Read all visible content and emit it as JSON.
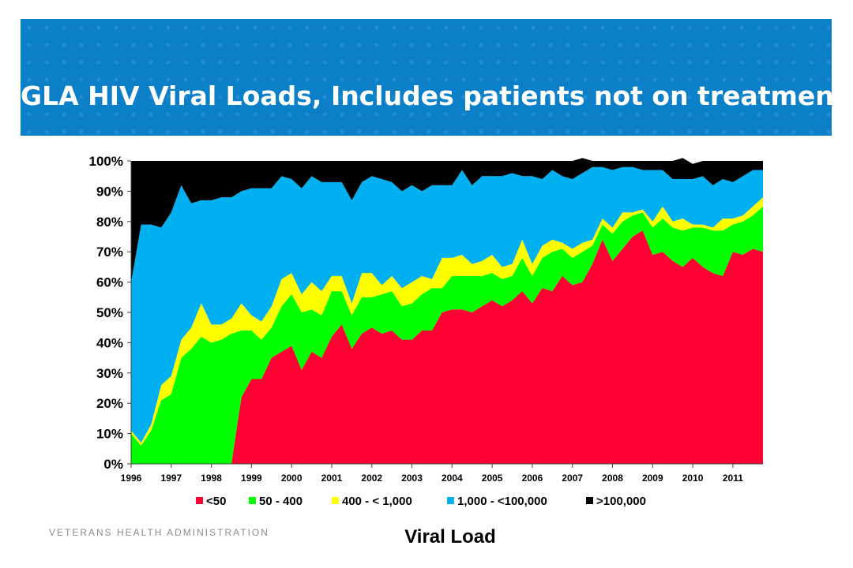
{
  "slide": {
    "title": "GLA HIV Viral Loads, Includes patients not on treatment",
    "org": "VETERANS HEALTH ADMINISTRATION"
  },
  "colors": {
    "banner": "#0b7fc8",
    "lt50": "#ff0033",
    "r50_400": "#00ff00",
    "r400_1000": "#ffff00",
    "r1000_100000": "#00b0f0",
    "gt100000": "#000000"
  },
  "chart_data": {
    "type": "area",
    "stacked": true,
    "xlabel": "Viral Load",
    "ylabel": "",
    "ylim": [
      0,
      100
    ],
    "y_ticks": [
      "0%",
      "10%",
      "20%",
      "30%",
      "40%",
      "50%",
      "60%",
      "70%",
      "80%",
      "90%",
      "100%"
    ],
    "x_ticks": [
      "1996",
      "1997",
      "1998",
      "1999",
      "2000",
      "2001",
      "2002",
      "2003",
      "2004",
      "2005",
      "2006",
      "2007",
      "2008",
      "2009",
      "2010",
      "2011"
    ],
    "x_range": [
      1996.0,
      2011.75
    ],
    "x": [
      1996.0,
      1996.25,
      1996.5,
      1996.75,
      1997.0,
      1997.25,
      1997.5,
      1997.75,
      1998.0,
      1998.25,
      1998.5,
      1998.75,
      1999.0,
      1999.25,
      1999.5,
      1999.75,
      2000.0,
      2000.25,
      2000.5,
      2000.75,
      2001.0,
      2001.25,
      2001.5,
      2001.75,
      2002.0,
      2002.25,
      2002.5,
      2002.75,
      2003.0,
      2003.25,
      2003.5,
      2003.75,
      2004.0,
      2004.25,
      2004.5,
      2004.75,
      2005.0,
      2005.25,
      2005.5,
      2005.75,
      2006.0,
      2006.25,
      2006.5,
      2006.75,
      2007.0,
      2007.25,
      2007.5,
      2007.75,
      2008.0,
      2008.25,
      2008.5,
      2008.75,
      2009.0,
      2009.25,
      2009.5,
      2009.75,
      2010.0,
      2010.25,
      2010.5,
      2010.75,
      2011.0,
      2011.25,
      2011.5,
      2011.75
    ],
    "legend_position": "bottom",
    "series": [
      {
        "name": "<50",
        "color": "#ff0033",
        "values": [
          0,
          0,
          0,
          0,
          0,
          0,
          0,
          0,
          0,
          0,
          0,
          22,
          28,
          28,
          35,
          37,
          39,
          31,
          37,
          35,
          42,
          46,
          38,
          43,
          45,
          43,
          44,
          41,
          41,
          44,
          44,
          50,
          51,
          51,
          50,
          52,
          54,
          52,
          54,
          57,
          53,
          58,
          57,
          62,
          59,
          60,
          66,
          74,
          67,
          71,
          75,
          77,
          69,
          70,
          67,
          65,
          68,
          65,
          63,
          62,
          70,
          69,
          71,
          70
        ]
      },
      {
        "name": "50 - 400",
        "color": "#00ff00",
        "values": [
          10,
          6,
          11,
          21,
          23,
          35,
          38,
          42,
          40,
          41,
          43,
          22,
          16,
          13,
          10,
          15,
          17,
          19,
          14,
          14,
          15,
          11,
          11,
          12,
          10,
          13,
          13,
          11,
          12,
          12,
          14,
          8,
          11,
          11,
          12,
          10,
          9,
          9,
          8,
          11,
          9,
          10,
          13,
          9,
          9,
          10,
          6,
          5,
          9,
          9,
          7,
          6,
          9,
          11,
          11,
          12,
          10,
          13,
          14,
          15,
          9,
          11,
          11,
          15
        ]
      },
      {
        "name": "400 - < 1,000",
        "color": "#ffff00",
        "values": [
          1,
          1,
          2,
          5,
          6,
          6,
          7,
          11,
          6,
          5,
          5,
          9,
          5,
          6,
          7,
          9,
          7,
          6,
          9,
          8,
          5,
          5,
          4,
          8,
          8,
          3,
          5,
          6,
          7,
          6,
          3,
          10,
          6,
          7,
          4,
          5,
          6,
          4,
          4,
          6,
          4,
          4,
          4,
          2,
          3,
          3,
          2,
          2,
          2,
          3,
          1,
          1,
          2,
          4,
          2,
          4,
          1,
          1,
          1,
          4,
          2,
          2,
          3,
          3
        ]
      },
      {
        "name": "1,000 - <100,000",
        "color": "#00b0f0",
        "values": [
          49,
          72,
          66,
          52,
          54,
          51,
          41,
          34,
          41,
          42,
          40,
          37,
          42,
          44,
          39,
          34,
          31,
          35,
          35,
          36,
          31,
          31,
          34,
          30,
          32,
          35,
          31,
          32,
          32,
          28,
          31,
          24,
          24,
          28,
          26,
          28,
          26,
          30,
          30,
          21,
          29,
          22,
          23,
          22,
          23,
          23,
          24,
          17,
          19,
          15,
          15,
          13,
          17,
          12,
          14,
          13,
          15,
          16,
          14,
          13,
          12,
          13,
          12,
          9
        ]
      },
      {
        "name": ">100,000",
        "color": "#000000",
        "values": [
          40,
          21,
          21,
          22,
          17,
          8,
          14,
          13,
          13,
          12,
          12,
          10,
          9,
          9,
          9,
          5,
          6,
          9,
          5,
          7,
          7,
          7,
          13,
          7,
          5,
          6,
          7,
          10,
          8,
          10,
          8,
          8,
          8,
          3,
          8,
          5,
          5,
          5,
          4,
          5,
          5,
          6,
          3,
          5,
          6,
          5,
          2,
          2,
          3,
          2,
          2,
          3,
          3,
          3,
          6,
          7,
          5,
          5,
          8,
          6,
          7,
          5,
          3,
          3
        ]
      }
    ]
  }
}
